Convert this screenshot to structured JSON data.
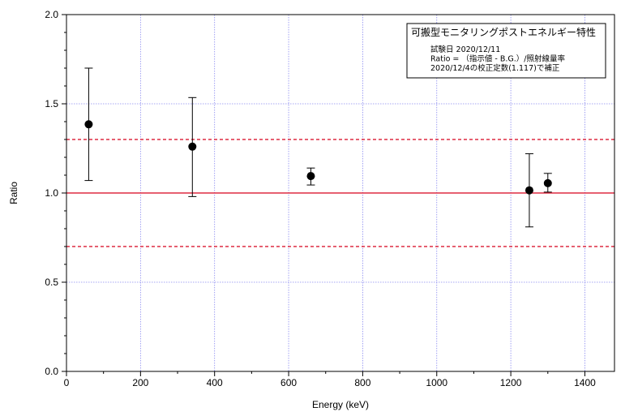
{
  "chart_data": {
    "type": "scatter",
    "xlabel": "Energy (keV)",
    "ylabel": "Ratio",
    "xlim": [
      0,
      1480
    ],
    "ylim": [
      0,
      2.0
    ],
    "x_ticks": [
      0,
      200,
      400,
      600,
      800,
      1000,
      1200,
      1400
    ],
    "y_ticks": [
      0.0,
      0.5,
      1.0,
      1.5,
      2.0
    ],
    "x_tick_labels": [
      "0",
      "200",
      "400",
      "600",
      "800",
      "1000",
      "1200",
      "1400"
    ],
    "y_tick_labels": [
      "0.0",
      "0.5",
      "1.0",
      "1.5",
      "2.0"
    ],
    "grid": true,
    "grid_color": "#8a8af0",
    "legend": {
      "position": "top-right",
      "title": "可搬型モニタリングポストエネルギー特性",
      "lines": [
        "試験日 2020/12/11",
        "Ratio = （指示値 - B.G.）/照射線量率",
        "2020/12/4の校正定数(1.117)で補正"
      ]
    },
    "reference_lines": [
      {
        "y": 1.0,
        "style": "solid",
        "color": "#d8001c"
      },
      {
        "y": 1.3,
        "style": "dashed",
        "color": "#d8001c"
      },
      {
        "y": 0.7,
        "style": "dashed",
        "color": "#d8001c"
      }
    ],
    "points": [
      {
        "x": 60,
        "y": 1.385,
        "err_low": 1.07,
        "err_high": 1.7
      },
      {
        "x": 340,
        "y": 1.26,
        "err_low": 0.98,
        "err_high": 1.535
      },
      {
        "x": 660,
        "y": 1.095,
        "err_low": 1.045,
        "err_high": 1.14
      },
      {
        "x": 1250,
        "y": 1.015,
        "err_low": 0.81,
        "err_high": 1.22
      },
      {
        "x": 1300,
        "y": 1.055,
        "err_low": 1.005,
        "err_high": 1.11
      }
    ],
    "marker_color": "#000000"
  }
}
